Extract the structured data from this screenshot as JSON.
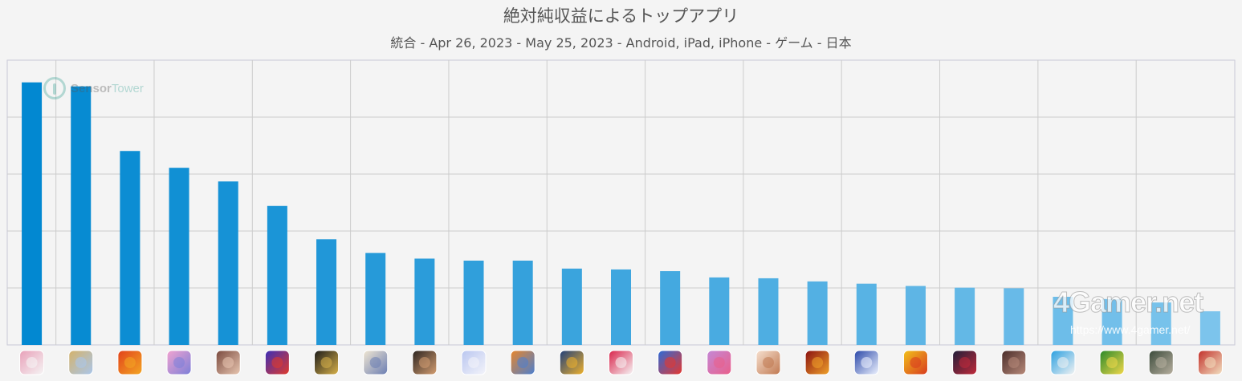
{
  "chart_data": {
    "type": "bar",
    "title": "絶対純収益によるトップアプリ",
    "subtitle": "統合 - Apr 26, 2023 - May 25, 2023 - Android, iPad, iPhone - ゲーム - 日本",
    "xlabel": "",
    "ylabel": "",
    "ylim": [
      0,
      100
    ],
    "grid": true,
    "categories": [
      "",
      "",
      "",
      "",
      "",
      "",
      "",
      "",
      "",
      "",
      "",
      "",
      "",
      "",
      "",
      "",
      "",
      "",
      "",
      "",
      "",
      "",
      "",
      "",
      ""
    ],
    "values": [
      92.2,
      90.8,
      68.1,
      62.2,
      57.4,
      48.8,
      37.1,
      32.3,
      30.3,
      29.6,
      29.6,
      26.8,
      26.5,
      25.9,
      23.7,
      23.4,
      22.3,
      21.5,
      20.7,
      20.1,
      19.9,
      16.9,
      16.1,
      14.9,
      11.8
    ],
    "bar_color_start": "#0288d1",
    "bar_color_end": "#7cc4ec"
  },
  "watermarks": {
    "sensortower_bold": "Sensor",
    "sensortower_rest": "Tower",
    "site_logo": "4Gamer.net",
    "site_url": "https://www.4gamer.net/"
  },
  "app_icon_colors": [
    [
      "#e8a0b8",
      "#f5f5f5"
    ],
    [
      "#d4b26a",
      "#a9c6ec"
    ],
    [
      "#e2421b",
      "#f3a623"
    ],
    [
      "#f2a3d0",
      "#7b7fd8"
    ],
    [
      "#7a4a3e",
      "#e9c7b2"
    ],
    [
      "#3a2fb8",
      "#e23a2a"
    ],
    [
      "#1a1a1a",
      "#d9b24a"
    ],
    [
      "#f1e7d2",
      "#6a7db3"
    ],
    [
      "#2a2320",
      "#d59f72"
    ],
    [
      "#b9c6f0",
      "#f4f4fa"
    ],
    [
      "#e8862a",
      "#4a7fd1"
    ],
    [
      "#1f3f7a",
      "#f0b22c"
    ],
    [
      "#d9234a",
      "#f6f6f6"
    ],
    [
      "#2b6ad8",
      "#e8362c"
    ],
    [
      "#c488d6",
      "#e95f8a"
    ],
    [
      "#f6e0cf",
      "#c07850"
    ],
    [
      "#8a1010",
      "#f0a22a"
    ],
    [
      "#2a47a8",
      "#eef3ff"
    ],
    [
      "#f2c21a",
      "#d83a1f"
    ],
    [
      "#1e1e3a",
      "#c22a3a"
    ],
    [
      "#4a2d2a",
      "#b88a7a"
    ],
    [
      "#2aa0e0",
      "#f3f3f3"
    ],
    [
      "#2a8a2a",
      "#f2d84a"
    ],
    [
      "#3a4a3a",
      "#b8b0a0"
    ],
    [
      "#c2302a",
      "#f2e0c0"
    ]
  ]
}
